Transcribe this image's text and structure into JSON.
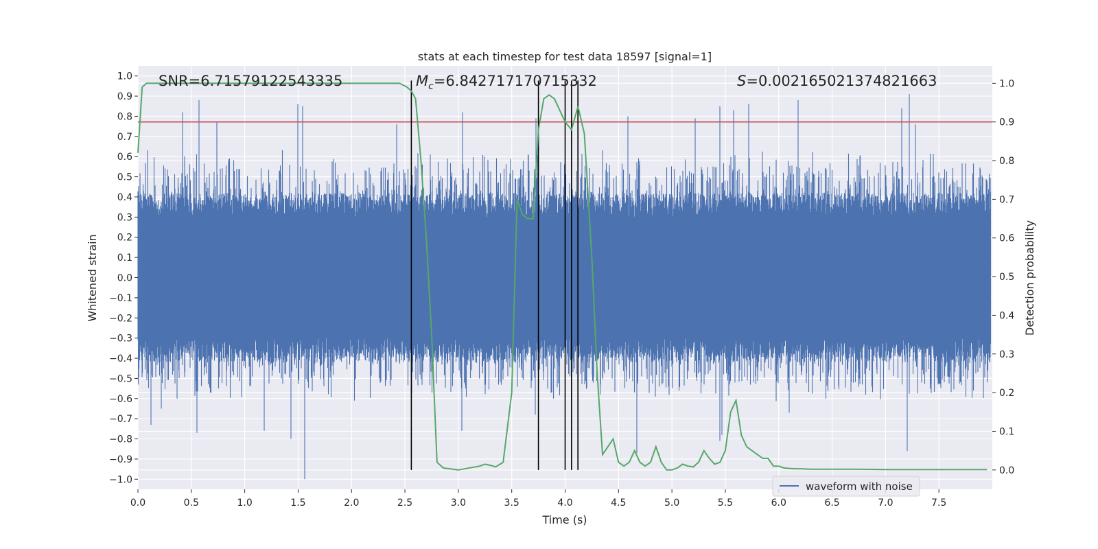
{
  "chart_data": {
    "type": "line",
    "title": "stats at each timestep for test data 18597 [signal=1]",
    "xlabel": "Time (s)",
    "ylabel_left": "Whitened strain",
    "ylabel_right": "Detection probability",
    "xlim": [
      0,
      8.0
    ],
    "ylim_left": [
      -1.05,
      1.05
    ],
    "ylim_right": [
      -0.05,
      1.045
    ],
    "x_ticks": [
      "0.0",
      "0.5",
      "1.0",
      "1.5",
      "2.0",
      "2.5",
      "3.0",
      "3.5",
      "4.0",
      "4.5",
      "5.0",
      "5.5",
      "6.0",
      "6.5",
      "7.0",
      "7.5"
    ],
    "y_left_ticks": [
      "1.0",
      "0.9",
      "0.8",
      "0.7",
      "0.6",
      "0.5",
      "0.4",
      "0.3",
      "0.2",
      "0.1",
      "0.0",
      "-0.1",
      "-0.2",
      "-0.3",
      "-0.4",
      "-0.5",
      "-0.6",
      "-0.7",
      "-0.8",
      "-0.9",
      "-1.0"
    ],
    "y_right_ticks": [
      "1.0",
      "0.9",
      "0.8",
      "0.7",
      "0.6",
      "0.5",
      "0.4",
      "0.3",
      "0.2",
      "0.1",
      "0.0"
    ],
    "grid": true,
    "legend": {
      "placement": "lower-right",
      "entries": [
        "waveform with noise"
      ]
    },
    "annotations": {
      "snr": "SNR=6.71579122543335",
      "mc_symbol": "M",
      "mc_sub": "c",
      "mc_value": "=6.842717170715332",
      "s_symbol": "S",
      "s_value": "=0.002165021374821663"
    },
    "threshold": {
      "value": 0.9,
      "axis": "right",
      "color": "#c44e52"
    },
    "vertical_markers": [
      2.56,
      3.75,
      4.0,
      4.06,
      4.12
    ],
    "waveform": {
      "name": "waveform with noise",
      "color": "#4c72b0",
      "t_start": 0.0,
      "t_end": 7.98,
      "typical_amplitude": 0.42,
      "peaks": [
        {
          "t": 0.42,
          "y": 0.82
        },
        {
          "t": 0.57,
          "y": 0.88
        },
        {
          "t": 0.74,
          "y": 0.77
        },
        {
          "t": 1.5,
          "y": 0.86
        },
        {
          "t": 1.54,
          "y": 0.85
        },
        {
          "t": 2.42,
          "y": 0.76
        },
        {
          "t": 3.04,
          "y": 0.82
        },
        {
          "t": 3.73,
          "y": 0.79
        },
        {
          "t": 4.59,
          "y": 0.8
        },
        {
          "t": 5.22,
          "y": 0.79
        },
        {
          "t": 5.45,
          "y": 0.85
        },
        {
          "t": 5.58,
          "y": 0.83
        },
        {
          "t": 5.72,
          "y": 0.86
        },
        {
          "t": 6.18,
          "y": 0.88
        },
        {
          "t": 7.15,
          "y": 0.84
        },
        {
          "t": 7.22,
          "y": 0.91
        },
        {
          "t": 7.28,
          "y": 0.76
        },
        {
          "t": 0.12,
          "y": -0.73
        },
        {
          "t": 0.22,
          "y": -0.65
        },
        {
          "t": 0.55,
          "y": -0.77
        },
        {
          "t": 1.18,
          "y": -0.76
        },
        {
          "t": 1.43,
          "y": -0.8
        },
        {
          "t": 1.56,
          "y": -1.0
        },
        {
          "t": 3.03,
          "y": -0.76
        },
        {
          "t": 3.72,
          "y": -0.68
        },
        {
          "t": 4.67,
          "y": -0.87
        },
        {
          "t": 5.45,
          "y": -0.81
        },
        {
          "t": 5.47,
          "y": -0.78
        },
        {
          "t": 6.1,
          "y": -0.67
        },
        {
          "t": 7.2,
          "y": -0.86
        }
      ]
    },
    "detection_probability": {
      "color": "#55a868",
      "x": [
        0.0,
        0.04,
        0.08,
        0.12,
        0.5,
        1.0,
        1.5,
        2.0,
        2.3,
        2.45,
        2.52,
        2.56,
        2.6,
        2.65,
        2.7,
        2.75,
        2.8,
        2.86,
        3.0,
        3.2,
        3.25,
        3.3,
        3.35,
        3.42,
        3.5,
        3.55,
        3.6,
        3.65,
        3.7,
        3.75,
        3.8,
        3.85,
        3.9,
        3.95,
        4.0,
        4.06,
        4.12,
        4.18,
        4.25,
        4.3,
        4.35,
        4.4,
        4.45,
        4.5,
        4.55,
        4.6,
        4.65,
        4.7,
        4.75,
        4.8,
        4.85,
        4.9,
        4.95,
        5.0,
        5.05,
        5.1,
        5.15,
        5.2,
        5.25,
        5.3,
        5.35,
        5.4,
        5.45,
        5.5,
        5.55,
        5.6,
        5.65,
        5.7,
        5.75,
        5.8,
        5.85,
        5.9,
        5.95,
        6.0,
        6.05,
        6.1,
        6.15,
        6.2,
        6.3,
        6.5,
        6.7,
        7.0,
        7.5,
        7.95
      ],
      "y": [
        0.82,
        0.99,
        1.0,
        1.0,
        1.0,
        1.0,
        1.0,
        1.0,
        1.0,
        1.0,
        0.99,
        0.98,
        0.96,
        0.8,
        0.6,
        0.35,
        0.02,
        0.005,
        0.0,
        0.01,
        0.015,
        0.012,
        0.008,
        0.02,
        0.2,
        0.7,
        0.66,
        0.65,
        0.65,
        0.88,
        0.96,
        0.97,
        0.96,
        0.93,
        0.9,
        0.88,
        0.94,
        0.87,
        0.55,
        0.25,
        0.04,
        0.06,
        0.08,
        0.02,
        0.01,
        0.02,
        0.05,
        0.02,
        0.01,
        0.02,
        0.06,
        0.02,
        0.0,
        0.0,
        0.005,
        0.015,
        0.01,
        0.008,
        0.02,
        0.05,
        0.03,
        0.015,
        0.02,
        0.05,
        0.15,
        0.18,
        0.09,
        0.06,
        0.05,
        0.04,
        0.03,
        0.03,
        0.01,
        0.01,
        0.005,
        0.004,
        0.003,
        0.003,
        0.002,
        0.002,
        0.002,
        0.001,
        0.001,
        0.001
      ]
    }
  }
}
